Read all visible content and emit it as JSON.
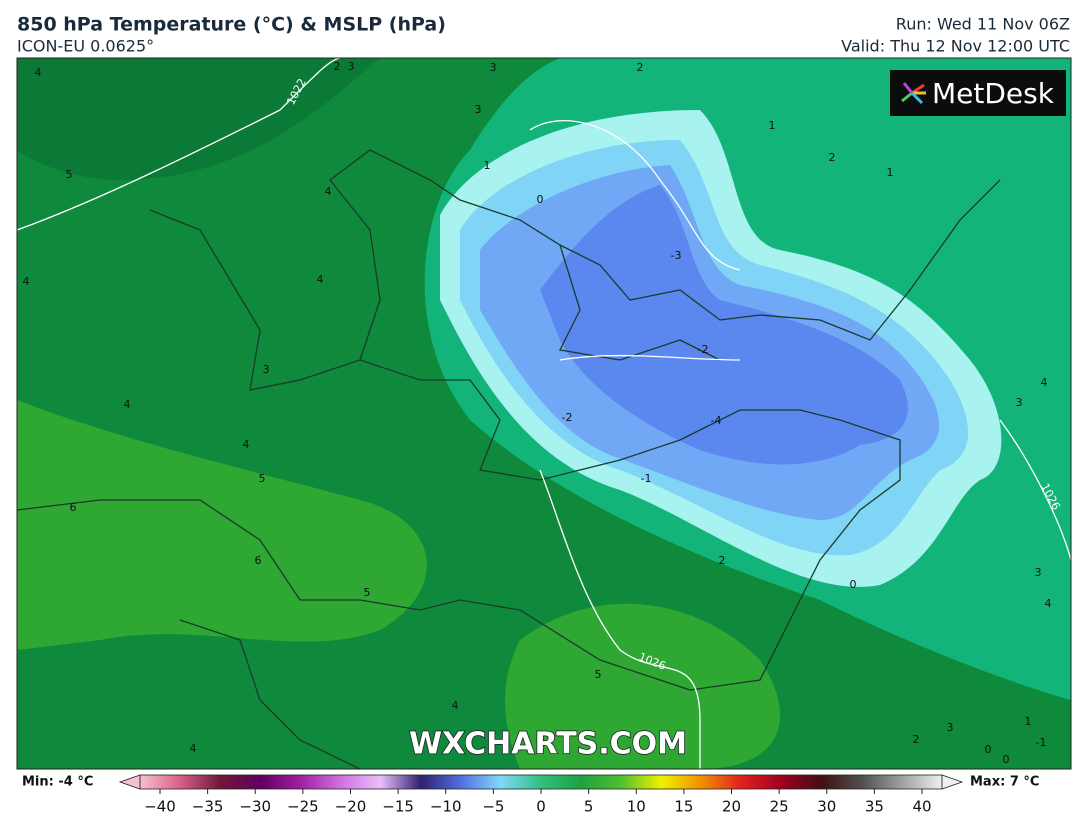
{
  "header": {
    "title": "850 hPa Temperature (°C) & MSLP (hPa)",
    "subtitle": "ICON-EU 0.0625°",
    "run": "Run: Wed 11 Nov 06Z",
    "valid": "Valid: Thu 12 Nov 12:00 UTC"
  },
  "logo": "MetDesk",
  "watermark": "WXCHARTS.COM",
  "contour_labels": [
    "4",
    "2",
    "3",
    "3",
    "2",
    "3",
    "1",
    "2",
    "1",
    "5",
    "1",
    "4",
    "0",
    "4",
    "4",
    "-3",
    "-2",
    "3",
    "4",
    "-2",
    "-4",
    "3",
    "4",
    "4",
    "5",
    "-1",
    "6",
    "6",
    "2",
    "0",
    "5",
    "3",
    "4",
    "5",
    "4",
    "4",
    "3",
    "1",
    "2",
    "-1",
    "0",
    "0"
  ],
  "isobar_labels": [
    "1022",
    "1026",
    "1026"
  ],
  "colorbar": {
    "min_label": "Min: -4 °C",
    "max_label": "Max: 7 °C",
    "ticks": [
      {
        "value": -40,
        "label": "−40"
      },
      {
        "value": -35,
        "label": "−35"
      },
      {
        "value": -30,
        "label": "−30"
      },
      {
        "value": -25,
        "label": "−25"
      },
      {
        "value": -20,
        "label": "−20"
      },
      {
        "value": -15,
        "label": "−15"
      },
      {
        "value": -10,
        "label": "−10"
      },
      {
        "value": -5,
        "label": "−5"
      },
      0,
      5,
      10,
      15,
      20,
      25,
      30,
      35,
      40
    ],
    "colors": [
      "#f7c0d0",
      "#d86088",
      "#701838",
      "#600060",
      "#a020a0",
      "#d070e0",
      "#e8c0f8",
      "#302070",
      "#5070e0",
      "#80d8f8",
      "#30c080",
      "#20a040",
      "#50c030",
      "#f0f000",
      "#f09000",
      "#e02020",
      "#a00020",
      "#401010",
      "#505050",
      "#a0a0a0",
      "#f0f0f0"
    ]
  }
}
